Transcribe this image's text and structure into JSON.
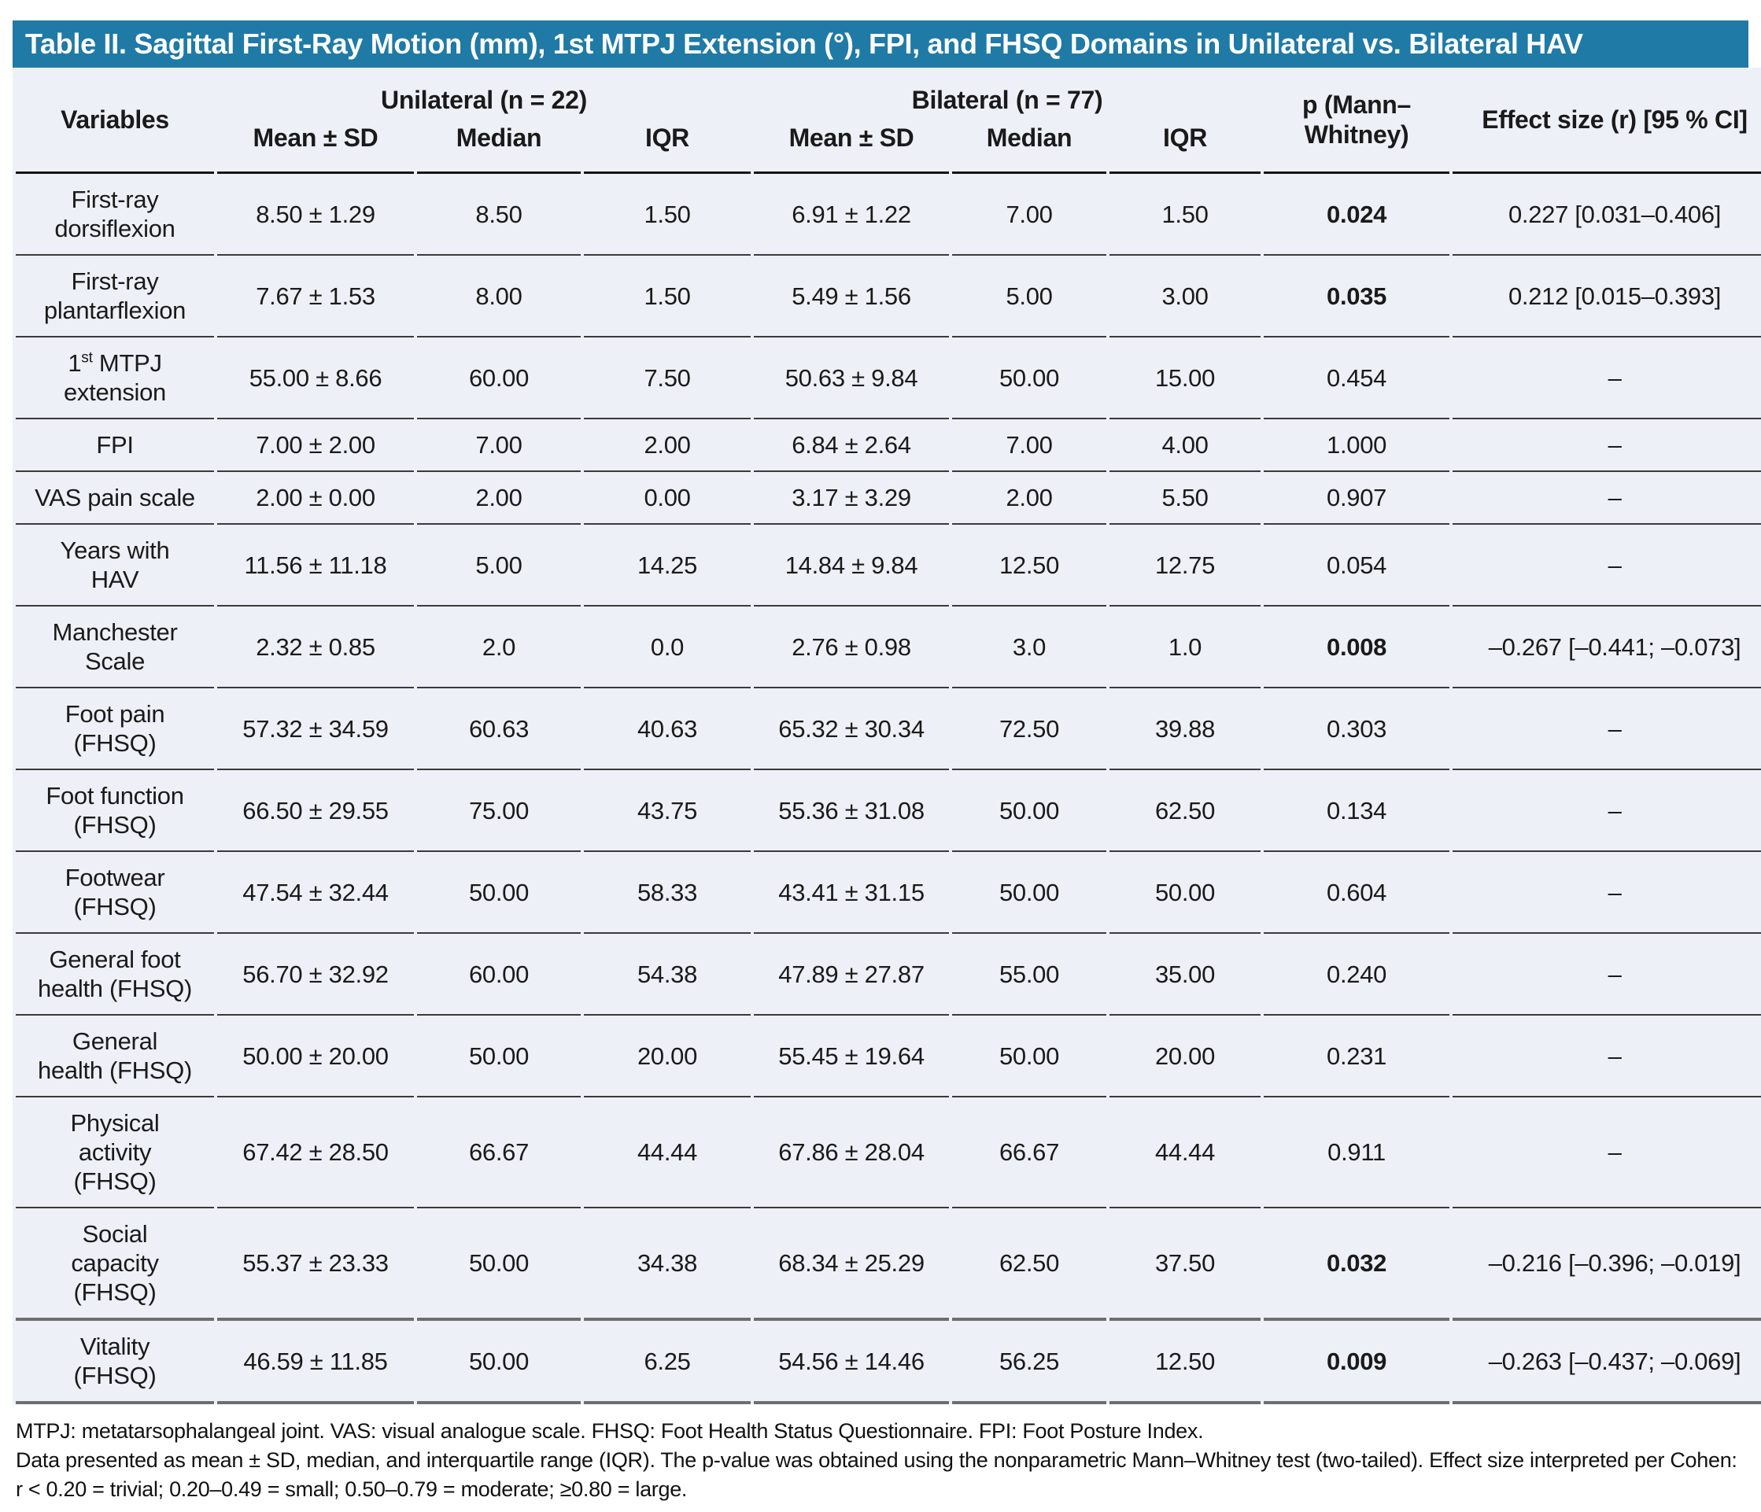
{
  "title": "Table II. Sagittal First-Ray Motion (mm), 1st MTPJ Extension (°), FPI, and FHSQ Domains in Unilateral vs. Bilateral HAV",
  "colors": {
    "title_bar_bg": "#1f7aa6",
    "title_text": "#ffffff",
    "table_bg": "#edf0f6",
    "page_bg": "#ffffff",
    "body_text": "#1a1a1a",
    "rule_thin": "#3a3a3a",
    "rule_header": "#141414",
    "rule_thick": "#6e6e6e"
  },
  "header": {
    "variables": "Variables",
    "group_unilateral": "Unilateral (n = 22)",
    "group_bilateral": "Bilateral (n = 77)",
    "sub": [
      "Mean ± SD",
      "Median",
      "IQR",
      "Mean ± SD",
      "Median",
      "IQR"
    ],
    "p": "p (Mann–Whitney)",
    "effect": "Effect size (r) [95 % CI]"
  },
  "table": {
    "rows": [
      {
        "variable": "First-ray\ndorsiflexion",
        "uni": [
          "8.50 ± 1.29",
          "8.50",
          "1.50"
        ],
        "bil": [
          "6.91 ± 1.22",
          "7.00",
          "1.50"
        ],
        "p": "0.024",
        "p_bold": true,
        "effect": "0.227 [0.031–0.406]"
      },
      {
        "variable": "First-ray\nplantarflexion",
        "uni": [
          "7.67 ± 1.53",
          "8.00",
          "1.50"
        ],
        "bil": [
          "5.49 ± 1.56",
          "5.00",
          "3.00"
        ],
        "p": "0.035",
        "p_bold": true,
        "effect": "0.212 [0.015–0.393]"
      },
      {
        "variable": "1st MTPJ\nextension",
        "sup": true,
        "uni": [
          "55.00 ± 8.66",
          "60.00",
          "7.50"
        ],
        "bil": [
          "50.63 ± 9.84",
          "50.00",
          "15.00"
        ],
        "p": "0.454",
        "p_bold": false,
        "effect": "–"
      },
      {
        "variable": "FPI",
        "uni": [
          "7.00 ± 2.00",
          "7.00",
          "2.00"
        ],
        "bil": [
          "6.84 ± 2.64",
          "7.00",
          "4.00"
        ],
        "p": "1.000",
        "p_bold": false,
        "effect": "–"
      },
      {
        "variable": "VAS pain scale",
        "uni": [
          "2.00 ± 0.00",
          "2.00",
          "0.00"
        ],
        "bil": [
          "3.17 ± 3.29",
          "2.00",
          "5.50"
        ],
        "p": "0.907",
        "p_bold": false,
        "effect": "–"
      },
      {
        "variable": "Years with\nHAV",
        "uni": [
          "11.56 ± 11.18",
          "5.00",
          "14.25"
        ],
        "bil": [
          "14.84 ± 9.84",
          "12.50",
          "12.75"
        ],
        "p": "0.054",
        "p_bold": false,
        "effect": "–"
      },
      {
        "variable": "Manchester\nScale",
        "uni": [
          "2.32 ± 0.85",
          "2.0",
          "0.0"
        ],
        "bil": [
          "2.76 ± 0.98",
          "3.0",
          "1.0"
        ],
        "p": "0.008",
        "p_bold": true,
        "effect": "–0.267 [–0.441; –0.073]"
      },
      {
        "variable": "Foot pain\n(FHSQ)",
        "uni": [
          "57.32 ± 34.59",
          "60.63",
          "40.63"
        ],
        "bil": [
          "65.32 ± 30.34",
          "72.50",
          "39.88"
        ],
        "p": "0.303",
        "p_bold": false,
        "effect": "–"
      },
      {
        "variable": "Foot function\n(FHSQ)",
        "uni": [
          "66.50 ± 29.55",
          "75.00",
          "43.75"
        ],
        "bil": [
          "55.36 ± 31.08",
          "50.00",
          "62.50"
        ],
        "p": "0.134",
        "p_bold": false,
        "effect": "–"
      },
      {
        "variable": "Footwear\n(FHSQ)",
        "uni": [
          "47.54 ± 32.44",
          "50.00",
          "58.33"
        ],
        "bil": [
          "43.41 ± 31.15",
          "50.00",
          "50.00"
        ],
        "p": "0.604",
        "p_bold": false,
        "effect": "–"
      },
      {
        "variable": "General foot\nhealth (FHSQ)",
        "uni": [
          "56.70 ± 32.92",
          "60.00",
          "54.38"
        ],
        "bil": [
          "47.89 ± 27.87",
          "55.00",
          "35.00"
        ],
        "p": "0.240",
        "p_bold": false,
        "effect": "–"
      },
      {
        "variable": "General\nhealth (FHSQ)",
        "uni": [
          "50.00 ± 20.00",
          "50.00",
          "20.00"
        ],
        "bil": [
          "55.45 ± 19.64",
          "50.00",
          "20.00"
        ],
        "p": "0.231",
        "p_bold": false,
        "effect": "–"
      },
      {
        "variable": "Physical\nactivity\n(FHSQ)",
        "uni": [
          "67.42 ± 28.50",
          "66.67",
          "44.44"
        ],
        "bil": [
          "67.86 ± 28.04",
          "66.67",
          "44.44"
        ],
        "p": "0.911",
        "p_bold": false,
        "effect": "–"
      },
      {
        "variable": "Social\ncapacity\n(FHSQ)",
        "uni": [
          "55.37 ± 23.33",
          "50.00",
          "34.38"
        ],
        "bil": [
          "68.34 ± 25.29",
          "62.50",
          "37.50"
        ],
        "p": "0.032",
        "p_bold": true,
        "effect": "–0.216 [–0.396; –0.019]"
      },
      {
        "variable": "Vitality\n(FHSQ)",
        "uni": [
          "46.59 ± 11.85",
          "50.00",
          "6.25"
        ],
        "bil": [
          "54.56 ± 14.46",
          "56.25",
          "12.50"
        ],
        "p": "0.009",
        "p_bold": true,
        "effect": "–0.263 [–0.437; –0.069]"
      }
    ]
  },
  "footnotes": {
    "abbreviations": "MTPJ: metatarsophalangeal joint. VAS: visual analogue scale. FHSQ: Foot Health Status Questionnaire. FPI: Foot Posture Index.",
    "methods": "Data presented as mean ± SD, median, and interquartile range (IQR). The p-value was obtained using the nonparametric Mann–Whitney test (two-tailed). Effect size interpreted per Cohen: r < 0.20 = trivial; 0.20–0.49 = small; 0.50–0.79 = moderate; ≥0.80 = large."
  }
}
